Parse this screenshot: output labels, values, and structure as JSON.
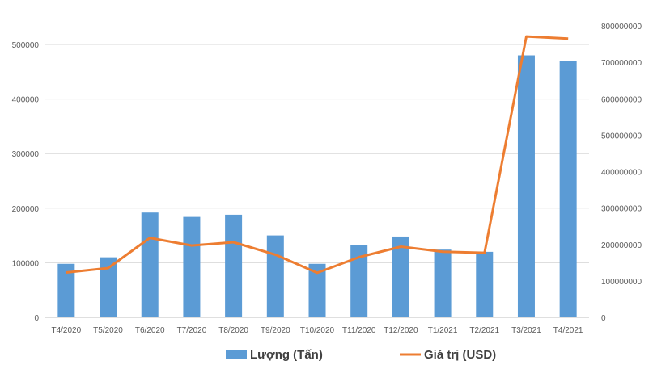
{
  "chart_data": {
    "type": "bar",
    "categories": [
      "T4/2020",
      "T5/2020",
      "T6/2020",
      "T7/2020",
      "T8/2020",
      "T9/2020",
      "T10/2020",
      "T11/2020",
      "T12/2020",
      "T1/2021",
      "T2/2021",
      "T3/2021",
      "T4/2021"
    ],
    "series": [
      {
        "name": "Lượng (Tấn)",
        "type": "bar",
        "axis": "left",
        "color": "#5B9BD5",
        "values": [
          98000,
          110000,
          192000,
          184000,
          188000,
          150000,
          98000,
          132000,
          148000,
          124000,
          120000,
          480000,
          469000
        ]
      },
      {
        "name": "Giá trị (USD)",
        "type": "line",
        "axis": "right",
        "color": "#ED7D31",
        "values": [
          123000000,
          135000000,
          218000000,
          197000000,
          206000000,
          172000000,
          122000000,
          165000000,
          194000000,
          180000000,
          177000000,
          771000000,
          765000000
        ]
      }
    ],
    "y_left": {
      "ylim": [
        0,
        500000
      ],
      "ticks": [
        "0",
        "100000",
        "200000",
        "300000",
        "400000",
        "500000"
      ]
    },
    "y_right": {
      "ylim": [
        0,
        800000000
      ],
      "ticks": [
        "0",
        "100000000",
        "200000000",
        "300000000",
        "400000000",
        "500000000",
        "600000000",
        "700000000",
        "800000000"
      ]
    },
    "grid": true,
    "legend_position": "bottom"
  }
}
